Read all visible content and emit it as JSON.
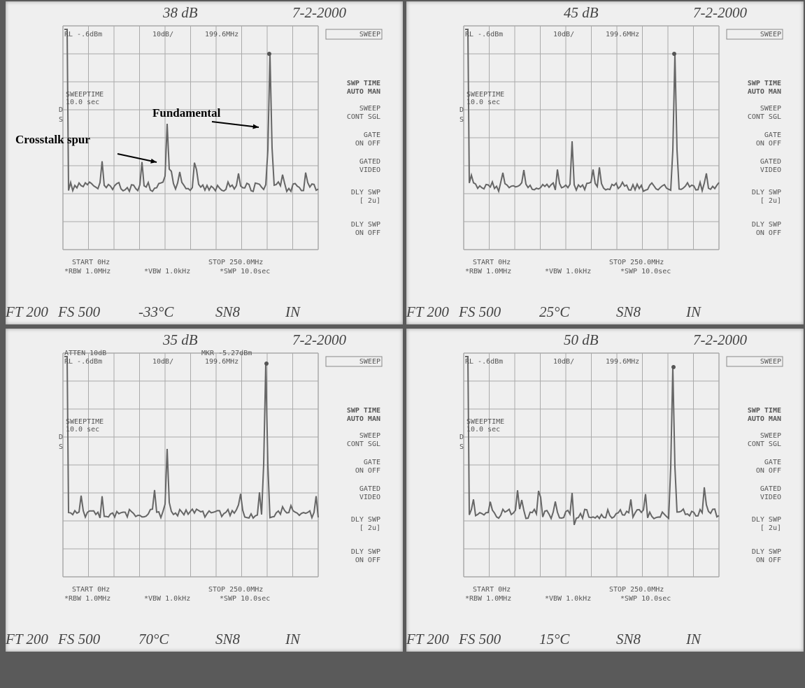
{
  "panels": [
    {
      "level": "38 dB",
      "date": "7-2-2000",
      "screen": {
        "atten": null,
        "marker": null,
        "rl": "RL -.6dBm",
        "scale": "10dB/",
        "marker_freq": "199.6MHz",
        "sweeptime": "SWEEPTIME",
        "sweeptime_value": "10.0 sec",
        "ds": [
          "D",
          "S"
        ],
        "start": "START 0Hz",
        "stop": "STOP 250.0MHz",
        "rbw": "*RBW 1.0MHz",
        "vbw": "*VBW 1.0kHz",
        "swp": "*SWP 10.0sec"
      },
      "softkeys": [
        "SWEEP",
        "SWP TIME",
        "AUTO MAN",
        "SWEEP",
        "CONT SGL",
        "GATE",
        "ON OFF",
        "GATED",
        "VIDEO",
        "DLY SWP",
        "[ 2u]",
        "DLY SWP",
        "ON OFF"
      ],
      "footer": [
        "FT 200",
        "FS 500",
        "-33°C",
        "SN8",
        "IN"
      ]
    },
    {
      "level": "45 dB",
      "date": "7-2-2000",
      "screen": {
        "atten": null,
        "marker": null,
        "rl": "RL -.6dBm",
        "scale": "10dB/",
        "marker_freq": "199.6MHz",
        "sweeptime": "SWEEPTIME",
        "sweeptime_value": "10.0 sec",
        "ds": [
          "D",
          "S"
        ],
        "start": "START 0Hz",
        "stop": "STOP 250.0MHz",
        "rbw": "*RBW 1.0MHz",
        "vbw": "*VBW 1.0kHz",
        "swp": "*SWP 10.0sec"
      },
      "softkeys": [
        "SWEEP",
        "SWP TIME",
        "AUTO MAN",
        "SWEEP",
        "CONT SGL",
        "GATE",
        "ON OFF",
        "GATED",
        "VIDEO",
        "DLY SWP",
        "[ 2u]",
        "DLY SWP",
        "ON OFF"
      ],
      "footer": [
        "FT 200",
        "FS 500",
        "25°C",
        "SN8",
        "IN"
      ]
    },
    {
      "level": "35 dB",
      "date": "7-2-2000",
      "screen": {
        "atten": "ATTEN 10dB",
        "marker": "MKR -5.27dBm",
        "rl": "RL -.6dBm",
        "scale": "10dB/",
        "marker_freq": "199.6MHz",
        "sweeptime": "SWEEPTIME",
        "sweeptime_value": "10.0 sec",
        "ds": [
          "D",
          "S"
        ],
        "start": "START 0Hz",
        "stop": "STOP 250.0MHz",
        "rbw": "*RBW 1.0MHz",
        "vbw": "*VBW 1.0kHz",
        "swp": "*SWP 10.0sec"
      },
      "softkeys": [
        "SWEEP",
        "SWP TIME",
        "AUTO MAN",
        "SWEEP",
        "CONT SGL",
        "GATE",
        "ON OFF",
        "GATED",
        "VIDEO",
        "DLY SWP",
        "[ 2u]",
        "DLY SWP",
        "ON OFF"
      ],
      "footer": [
        "FT 200",
        "FS 500",
        "70°C",
        "SN8",
        "IN"
      ]
    },
    {
      "level": "50 dB",
      "date": "7-2-2000",
      "screen": {
        "atten": null,
        "marker": null,
        "rl": "RL -.6dBm",
        "scale": "10dB/",
        "marker_freq": "199.6MHz",
        "sweeptime": "SWEEPTIME",
        "sweeptime_value": "10.0 sec",
        "ds": [
          "D",
          "S"
        ],
        "start": "START 0Hz",
        "stop": "STOP 250.0MHz",
        "rbw": "*RBW 1.0MHz",
        "vbw": "*VBW 1.0kHz",
        "swp": "*SWP 10.0sec"
      },
      "softkeys": [
        "SWEEP",
        "SWP TIME",
        "AUTO MAN",
        "SWEEP",
        "CONT SGL",
        "GATE",
        "ON OFF",
        "GATED",
        "VIDEO",
        "DLY SWP",
        "[ 2u]",
        "DLY SWP",
        "ON OFF"
      ],
      "footer": [
        "FT 200",
        "FS 500",
        "15°C",
        "SN8",
        "IN"
      ]
    }
  ],
  "annotations": [
    "Fundamental",
    "Crosstalk spur"
  ]
}
